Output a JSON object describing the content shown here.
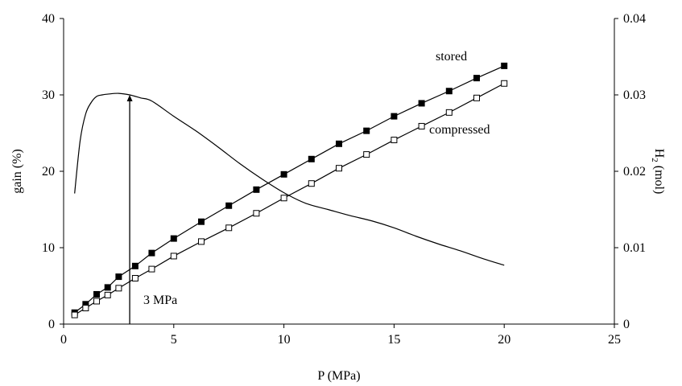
{
  "chart_data": {
    "type": "line",
    "x_axis": {
      "label": "P (MPa)",
      "range": [
        0,
        25
      ],
      "ticks": [
        0,
        5,
        10,
        15,
        20,
        25
      ],
      "tick_labels": [
        "0",
        "5",
        "10",
        "15",
        "20",
        "25"
      ]
    },
    "y_axis_left": {
      "label": "gain (%)",
      "range": [
        0,
        40
      ],
      "ticks": [
        0,
        10,
        20,
        30,
        40
      ],
      "tick_labels": [
        "0",
        "10",
        "20",
        "30",
        "40"
      ]
    },
    "y_axis_right": {
      "label_main": "H",
      "label_sub": "2",
      "label_rest": " (mol)",
      "range": [
        0,
        0.04
      ],
      "ticks": [
        0,
        0.01,
        0.02,
        0.03,
        0.04
      ],
      "tick_labels": [
        "0",
        "0.01",
        "0.02",
        "0.03",
        "0.04"
      ]
    },
    "grid": false,
    "series": [
      {
        "name": "stored",
        "axis": "right",
        "marker": "filled-square",
        "color": "#000000",
        "x": [
          0.5,
          1.0,
          1.5,
          2.0,
          2.5,
          3.25,
          4.0,
          5.0,
          6.25,
          7.5,
          8.75,
          10.0,
          11.25,
          12.5,
          13.75,
          15.0,
          16.25,
          17.5,
          18.75,
          20.0
        ],
        "y": [
          0.0015,
          0.0026,
          0.0039,
          0.0048,
          0.0062,
          0.0076,
          0.0093,
          0.0112,
          0.0134,
          0.0155,
          0.0176,
          0.0196,
          0.0216,
          0.0236,
          0.0253,
          0.0272,
          0.0289,
          0.0305,
          0.0322,
          0.0338
        ]
      },
      {
        "name": "compressed",
        "axis": "right",
        "marker": "open-square",
        "color": "#000000",
        "x": [
          0.5,
          1.0,
          1.5,
          2.0,
          2.5,
          3.25,
          4.0,
          5.0,
          6.25,
          7.5,
          8.75,
          10.0,
          11.25,
          12.5,
          13.75,
          15.0,
          16.25,
          17.5,
          18.75,
          20.0
        ],
        "y": [
          0.0012,
          0.0021,
          0.003,
          0.0038,
          0.0047,
          0.006,
          0.0072,
          0.0089,
          0.0108,
          0.0126,
          0.0145,
          0.0165,
          0.0184,
          0.0204,
          0.0222,
          0.0241,
          0.0259,
          0.0277,
          0.0296,
          0.0315
        ]
      },
      {
        "name": "gain",
        "axis": "left",
        "marker": "none",
        "color": "#000000",
        "x": [
          0.5,
          0.75,
          1.0,
          1.25,
          1.5,
          1.75,
          2.0,
          2.5,
          3.0,
          3.5,
          4.0,
          5.0,
          6.0,
          7.0,
          8.0,
          9.0,
          10.0,
          11.0,
          12.0,
          13.0,
          14.0,
          15.0,
          16.0,
          17.0,
          18.0,
          19.0,
          20.0
        ],
        "y": [
          17.1,
          24.0,
          27.5,
          29.0,
          29.8,
          30.0,
          30.1,
          30.2,
          30.0,
          29.6,
          29.2,
          27.2,
          25.3,
          23.2,
          21.0,
          19.0,
          17.2,
          15.8,
          15.0,
          14.2,
          13.5,
          12.6,
          11.5,
          10.5,
          9.6,
          8.6,
          7.7
        ]
      }
    ],
    "annotations": {
      "stored_label": "stored",
      "compressed_label": "compressed",
      "arrow_label": "3 MPa",
      "arrow_x": 3,
      "arrow_y_from": 0,
      "arrow_y_to": 30
    }
  }
}
